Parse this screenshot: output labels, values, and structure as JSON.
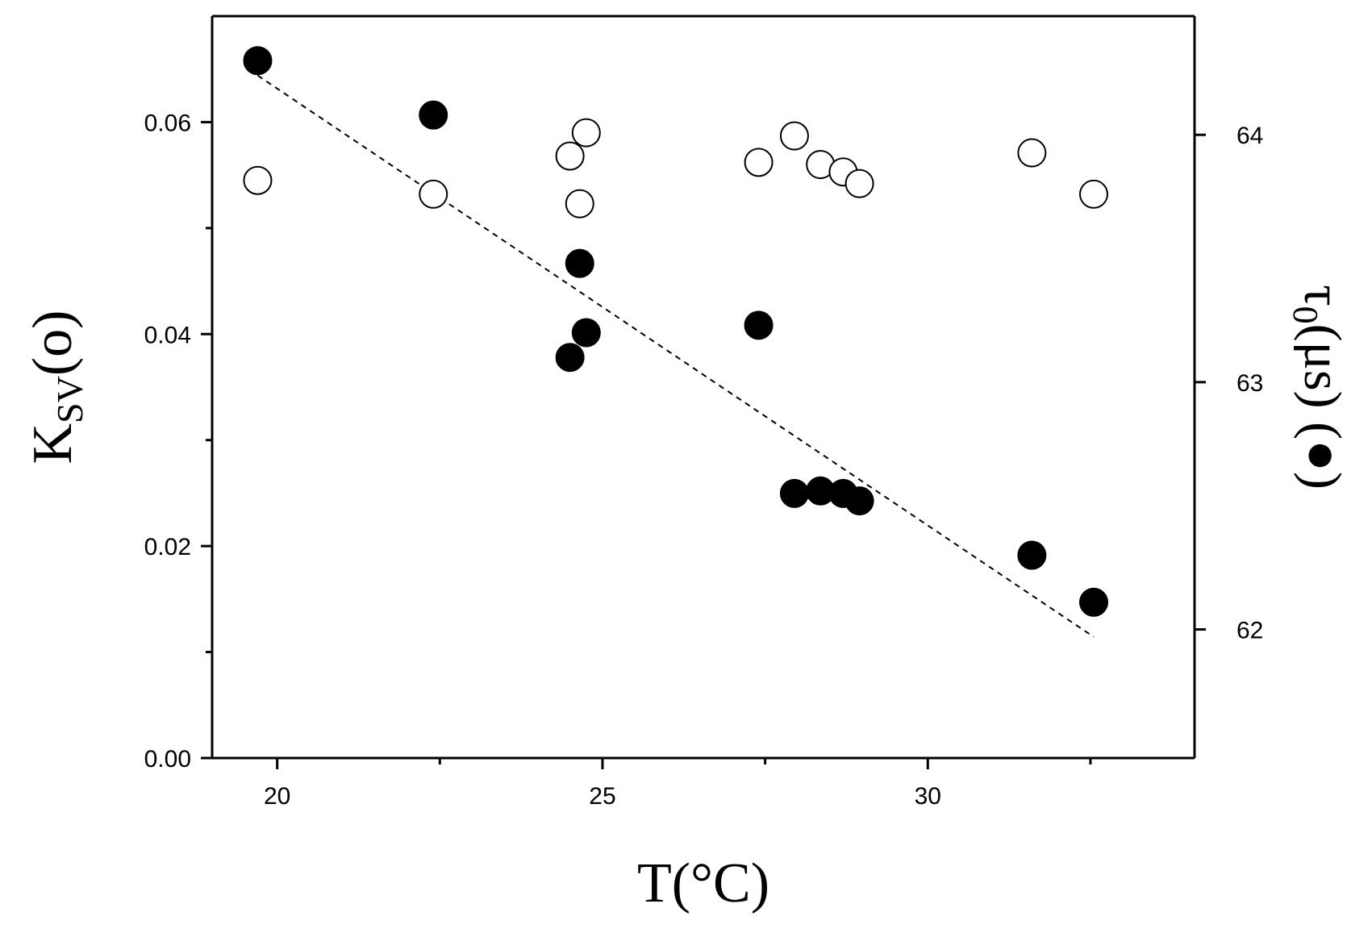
{
  "chart_data": {
    "type": "scatter",
    "x_axis": {
      "label": "T(°C)",
      "range": [
        19.0,
        34.1
      ],
      "ticks": [
        20,
        25,
        30
      ],
      "tick_labels": [
        "20",
        "25",
        "30"
      ],
      "minor_ticks": [
        22.5,
        27.5,
        32.5
      ]
    },
    "y_left": {
      "label_main": "K",
      "label_sub": "SV",
      "label_suffix": "(o)",
      "range": [
        0.0,
        0.07
      ],
      "ticks": [
        0.0,
        0.02,
        0.04,
        0.06
      ],
      "tick_labels": [
        "0.00",
        "0.02",
        "0.04",
        "0.06"
      ],
      "minor_ticks": [
        0.01,
        0.03,
        0.05
      ]
    },
    "y_right": {
      "label_main": "τ",
      "label_sub": "0",
      "label_suffix": "(μs) (●)",
      "range": [
        61.48,
        64.48
      ],
      "ticks": [
        62,
        63,
        64
      ],
      "tick_labels": [
        "62",
        "63",
        "64"
      ]
    },
    "series": [
      {
        "axis": "left",
        "marker": "open-circle",
        "x": [
          19.7,
          22.4,
          24.5,
          24.65,
          24.75,
          27.4,
          27.95,
          28.35,
          28.7,
          28.95,
          31.6,
          32.55
        ],
        "y": [
          0.0545,
          0.0532,
          0.0568,
          0.0523,
          0.059,
          0.0562,
          0.0587,
          0.056,
          0.0553,
          0.0542,
          0.0571,
          0.0532
        ]
      },
      {
        "axis": "right",
        "marker": "filled-circle",
        "x": [
          19.7,
          22.4,
          24.5,
          24.65,
          24.75,
          27.4,
          27.95,
          28.35,
          28.7,
          28.95,
          31.6,
          32.55
        ],
        "y": [
          64.3,
          64.08,
          63.1,
          63.48,
          63.2,
          63.23,
          62.55,
          62.56,
          62.55,
          62.52,
          62.3,
          62.11
        ]
      }
    ],
    "fit_line": {
      "axis": "right",
      "style": "dashed",
      "x": [
        19.7,
        32.55
      ],
      "y": [
        64.24,
        61.97
      ]
    },
    "grid": false,
    "legend": "none"
  }
}
